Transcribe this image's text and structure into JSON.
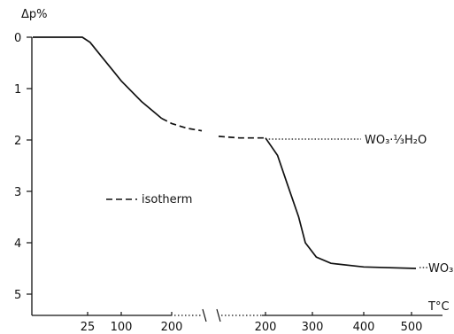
{
  "chart_data": {
    "type": "line",
    "title": "",
    "ylabel": "Δp%",
    "xlabel": "T°C",
    "y_axis": {
      "direction": "down",
      "range": [
        0,
        5.5
      ],
      "ticks": [
        "0",
        "1",
        "2",
        "3",
        "4",
        "5"
      ]
    },
    "x_axis_left": {
      "ticks": [
        "25",
        "100",
        "200"
      ]
    },
    "x_axis_right": {
      "ticks": [
        "200",
        "300",
        "400",
        "500"
      ]
    },
    "x_axis_break": true,
    "legend": {
      "entry": "isotherm",
      "style": "dashed",
      "placement": "middle-left"
    },
    "series": [
      {
        "segment": "left",
        "style": "solid",
        "points": [
          [
            0,
            0
          ],
          [
            25,
            0
          ],
          [
            40,
            0.1
          ],
          [
            60,
            0.35
          ],
          [
            80,
            0.6
          ],
          [
            100,
            0.85
          ],
          [
            140,
            1.25
          ],
          [
            180,
            1.58
          ]
        ]
      },
      {
        "segment": "left",
        "style": "dashed",
        "points": [
          [
            180,
            1.58
          ],
          [
            200,
            1.68
          ],
          [
            225,
            1.77
          ],
          [
            250,
            1.82
          ]
        ]
      },
      {
        "segment": "right",
        "style": "dashed",
        "points": [
          [
            200,
            1.93
          ],
          [
            220,
            1.96
          ],
          [
            245,
            1.96
          ]
        ]
      },
      {
        "segment": "right",
        "style": "solid",
        "points": [
          [
            245,
            1.96
          ],
          [
            270,
            2.3
          ],
          [
            290,
            2.85
          ],
          [
            310,
            3.5
          ],
          [
            320,
            4.0
          ],
          [
            335,
            4.28
          ],
          [
            355,
            4.4
          ],
          [
            400,
            4.47
          ],
          [
            500,
            4.5
          ]
        ]
      }
    ],
    "annotations": [
      {
        "text": "WO₃·⅓H₂O",
        "at_y": 2.0,
        "leader": "dotted"
      },
      {
        "text": "WO₃",
        "at_y": 4.5,
        "leader": "dotted"
      }
    ]
  }
}
